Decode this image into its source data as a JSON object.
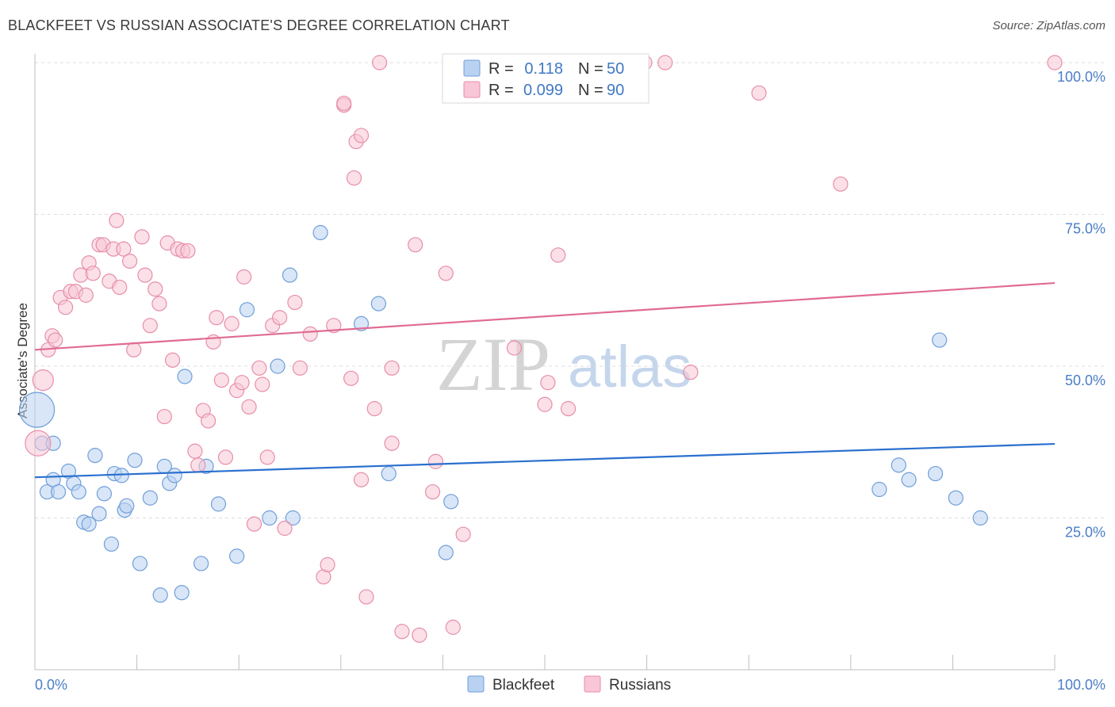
{
  "header": {
    "title": "BLACKFEET VS RUSSIAN ASSOCIATE'S DEGREE CORRELATION CHART",
    "source": "Source: ZipAtlas.com"
  },
  "watermark": {
    "zip": "ZIP",
    "atlas": "atlas"
  },
  "legend": {
    "r_label": "R =",
    "n_label": "N =",
    "rows": [
      {
        "r": "0.118",
        "n": "50"
      },
      {
        "r": "0.099",
        "n": "90"
      }
    ]
  },
  "colors": {
    "blackfeet_fill": "#b9d2f2",
    "blackfeet_stroke": "#6f9fd8",
    "blackfeet_line": "#2a6fcf",
    "russians_fill": "#f8c6d6",
    "russians_stroke": "#e78ea9",
    "russians_line": "#e06b93",
    "tick_label": "#4a7ec7",
    "grid": "#dddddd"
  },
  "chart_data": {
    "type": "scatter",
    "title": "BLACKFEET VS RUSSIAN ASSOCIATE'S DEGREE CORRELATION CHART",
    "xlabel": "",
    "ylabel": "Associate's Degree",
    "xlim": [
      0,
      100
    ],
    "ylim": [
      0,
      102
    ],
    "x_tick_labels": [
      "0.0%",
      "100.0%"
    ],
    "y_ticks": [
      25,
      50,
      75,
      100
    ],
    "y_tick_labels": [
      "25.0%",
      "50.0%",
      "75.0%",
      "100.0%"
    ],
    "grid": "horizontal dashed",
    "legend_placement": "top-center",
    "series": [
      {
        "name": "Blackfeet",
        "r": 0.118,
        "n": 50,
        "trend": [
          [
            0,
            31.7
          ],
          [
            100,
            37.2
          ]
        ],
        "points": [
          [
            0.2,
            42.8,
            22
          ],
          [
            0.7,
            37.3,
            9
          ],
          [
            1.8,
            37.3,
            9
          ],
          [
            1.2,
            29.3,
            9
          ],
          [
            1.8,
            31.3,
            9
          ],
          [
            2.3,
            29.3,
            9
          ],
          [
            3.3,
            32.7,
            9
          ],
          [
            3.8,
            30.7,
            9
          ],
          [
            4.3,
            29.3,
            9
          ],
          [
            4.8,
            24.3,
            9
          ],
          [
            5.3,
            24.0,
            9
          ],
          [
            5.9,
            35.3,
            9
          ],
          [
            6.3,
            25.7,
            9
          ],
          [
            6.8,
            29.0,
            9
          ],
          [
            7.5,
            20.7,
            9
          ],
          [
            7.8,
            32.3,
            9
          ],
          [
            8.5,
            32.0,
            9
          ],
          [
            8.8,
            26.3,
            9
          ],
          [
            9.0,
            27.0,
            9
          ],
          [
            9.8,
            34.5,
            9
          ],
          [
            10.3,
            17.5,
            9
          ],
          [
            11.3,
            28.3,
            9
          ],
          [
            12.3,
            12.3,
            9
          ],
          [
            12.7,
            33.5,
            9
          ],
          [
            13.2,
            30.7,
            9
          ],
          [
            13.7,
            32.0,
            9
          ],
          [
            14.4,
            12.7,
            9
          ],
          [
            14.7,
            48.3,
            9
          ],
          [
            16.3,
            17.5,
            9
          ],
          [
            16.8,
            33.5,
            9
          ],
          [
            18.0,
            27.3,
            9
          ],
          [
            19.8,
            18.7,
            9
          ],
          [
            20.8,
            59.3,
            9
          ],
          [
            23.0,
            25.0,
            9
          ],
          [
            23.8,
            50.0,
            9
          ],
          [
            25.0,
            65.0,
            9
          ],
          [
            25.3,
            25.0,
            9
          ],
          [
            28.0,
            72.0,
            9
          ],
          [
            32.0,
            57.0,
            9
          ],
          [
            33.7,
            60.3,
            9
          ],
          [
            34.7,
            32.3,
            9
          ],
          [
            40.3,
            19.3,
            9
          ],
          [
            40.8,
            27.7,
            9
          ],
          [
            82.8,
            29.7,
            9
          ],
          [
            84.7,
            33.7,
            9
          ],
          [
            85.7,
            31.3,
            9
          ],
          [
            88.3,
            32.3,
            9
          ],
          [
            88.7,
            54.3,
            9
          ],
          [
            90.3,
            28.3,
            9
          ],
          [
            92.7,
            25.0,
            9
          ]
        ]
      },
      {
        "name": "Russians",
        "r": 0.099,
        "n": 90,
        "trend": [
          [
            0,
            52.7
          ],
          [
            100,
            63.7
          ]
        ],
        "points": [
          [
            0.3,
            37.3,
            16
          ],
          [
            0.8,
            47.7,
            13
          ],
          [
            1.3,
            52.7,
            9
          ],
          [
            1.7,
            55.0,
            9
          ],
          [
            2.0,
            54.3,
            9
          ],
          [
            2.5,
            61.3,
            9
          ],
          [
            3.0,
            59.7,
            9
          ],
          [
            3.5,
            62.3,
            9
          ],
          [
            4.0,
            62.3,
            9
          ],
          [
            4.5,
            65.0,
            9
          ],
          [
            5.0,
            61.7,
            9
          ],
          [
            5.3,
            67.0,
            9
          ],
          [
            5.7,
            65.3,
            9
          ],
          [
            6.3,
            70.0,
            9
          ],
          [
            6.7,
            70.0,
            9
          ],
          [
            7.3,
            64.0,
            9
          ],
          [
            7.7,
            69.3,
            9
          ],
          [
            8.0,
            74.0,
            9
          ],
          [
            8.3,
            63.0,
            9
          ],
          [
            8.7,
            69.3,
            9
          ],
          [
            9.3,
            67.3,
            9
          ],
          [
            9.7,
            52.7,
            9
          ],
          [
            10.5,
            71.3,
            9
          ],
          [
            10.8,
            65.0,
            9
          ],
          [
            11.3,
            56.7,
            9
          ],
          [
            11.8,
            62.7,
            9
          ],
          [
            12.2,
            60.3,
            9
          ],
          [
            12.7,
            41.7,
            9
          ],
          [
            13.0,
            70.3,
            9
          ],
          [
            13.5,
            51.0,
            9
          ],
          [
            14.0,
            69.3,
            9
          ],
          [
            14.5,
            69.0,
            9
          ],
          [
            15.0,
            69.0,
            9
          ],
          [
            15.7,
            36.0,
            9
          ],
          [
            16.0,
            33.7,
            9
          ],
          [
            16.5,
            42.7,
            9
          ],
          [
            17.0,
            41.0,
            9
          ],
          [
            17.5,
            54.0,
            9
          ],
          [
            17.8,
            58.0,
            9
          ],
          [
            18.3,
            47.7,
            9
          ],
          [
            18.7,
            35.0,
            9
          ],
          [
            19.3,
            57.0,
            9
          ],
          [
            19.8,
            46.0,
            9
          ],
          [
            20.3,
            47.3,
            9
          ],
          [
            20.5,
            64.7,
            9
          ],
          [
            21.0,
            43.3,
            9
          ],
          [
            21.5,
            24.0,
            9
          ],
          [
            22.0,
            49.7,
            9
          ],
          [
            22.3,
            47.0,
            9
          ],
          [
            22.8,
            35.0,
            9
          ],
          [
            23.3,
            56.7,
            9
          ],
          [
            24.0,
            58.0,
            9
          ],
          [
            24.5,
            23.3,
            9
          ],
          [
            25.5,
            60.5,
            9
          ],
          [
            26.0,
            49.7,
            9
          ],
          [
            27.0,
            55.3,
            9
          ],
          [
            28.3,
            15.3,
            9
          ],
          [
            28.7,
            17.3,
            9
          ],
          [
            29.3,
            56.7,
            9
          ],
          [
            30.3,
            93.0,
            9
          ],
          [
            31.0,
            48.0,
            9
          ],
          [
            31.5,
            87.0,
            9
          ],
          [
            31.3,
            81.0,
            9
          ],
          [
            32.0,
            31.3,
            9
          ],
          [
            32.5,
            12.0,
            9
          ],
          [
            33.3,
            43.0,
            9
          ],
          [
            33.8,
            100.0,
            9
          ],
          [
            35.0,
            49.7,
            9
          ],
          [
            35.0,
            37.3,
            9
          ],
          [
            36.0,
            6.3,
            9
          ],
          [
            37.3,
            70.0,
            9
          ],
          [
            37.7,
            5.7,
            9
          ],
          [
            39.0,
            29.3,
            9
          ],
          [
            39.3,
            34.3,
            9
          ],
          [
            40.3,
            65.3,
            9
          ],
          [
            41.0,
            7.0,
            9
          ],
          [
            42.0,
            22.3,
            9
          ],
          [
            47.0,
            53.0,
            9
          ],
          [
            50.0,
            43.7,
            9
          ],
          [
            50.3,
            47.3,
            9
          ],
          [
            51.3,
            68.3,
            9
          ],
          [
            52.3,
            43.0,
            9
          ],
          [
            59.8,
            100.0,
            9
          ],
          [
            61.8,
            100.0,
            9
          ],
          [
            64.3,
            49.0,
            9
          ],
          [
            71.0,
            95.0,
            9
          ],
          [
            79.0,
            80.0,
            9
          ],
          [
            100.0,
            100.0,
            9
          ],
          [
            30.3,
            93.3,
            9
          ],
          [
            32.0,
            88.0,
            9
          ]
        ]
      }
    ]
  }
}
